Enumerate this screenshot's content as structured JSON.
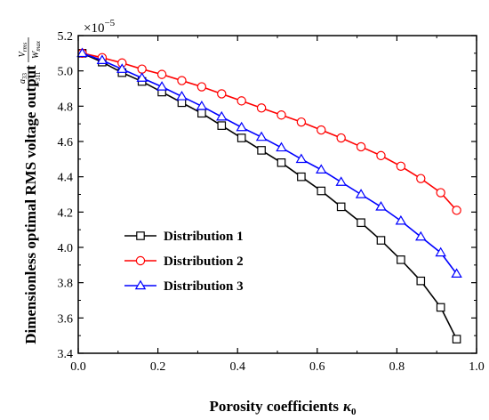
{
  "chart_data": {
    "type": "line",
    "xlabel": "Porosity coefficients",
    "xlabel_symbol": "κ",
    "xlabel_subscript": "0",
    "ylabel": "Dimensionless optimal RMS voltage output",
    "ylabel_factor": {
      "a": "a",
      "a_sub": "33",
      "e": "e",
      "e_sub": "311",
      "v": "V",
      "v_sub": "rms",
      "w": "W",
      "w_sub": "max"
    },
    "y_multiplier": "×10",
    "y_multiplier_exp": "−5",
    "xlim": [
      0.0,
      1.0
    ],
    "ylim": [
      3.4,
      5.2
    ],
    "xticks": [
      "0.0",
      "0.2",
      "0.4",
      "0.6",
      "0.8",
      "1.0"
    ],
    "yticks": [
      "3.4",
      "3.6",
      "3.8",
      "4.0",
      "4.2",
      "4.4",
      "4.6",
      "4.8",
      "5.0",
      "5.2"
    ],
    "legend_position": "lower-left",
    "x": [
      0.01,
      0.06,
      0.11,
      0.16,
      0.21,
      0.26,
      0.31,
      0.36,
      0.41,
      0.46,
      0.51,
      0.56,
      0.61,
      0.66,
      0.71,
      0.76,
      0.81,
      0.86,
      0.91,
      0.95
    ],
    "series": [
      {
        "name": "Distribution 1",
        "color": "#000000",
        "marker": "square",
        "values": [
          5.1,
          5.05,
          4.99,
          4.94,
          4.88,
          4.82,
          4.76,
          4.69,
          4.62,
          4.55,
          4.48,
          4.4,
          4.32,
          4.23,
          4.14,
          4.04,
          3.93,
          3.81,
          3.66,
          3.48
        ]
      },
      {
        "name": "Distribution 2",
        "color": "#ff0000",
        "marker": "circle",
        "values": [
          5.1,
          5.075,
          5.045,
          5.01,
          4.98,
          4.945,
          4.91,
          4.87,
          4.83,
          4.79,
          4.75,
          4.71,
          4.665,
          4.62,
          4.57,
          4.52,
          4.46,
          4.39,
          4.31,
          4.21
        ]
      },
      {
        "name": "Distribution 3",
        "color": "#0000ff",
        "marker": "triangle",
        "values": [
          5.1,
          5.06,
          5.01,
          4.96,
          4.91,
          4.855,
          4.8,
          4.74,
          4.68,
          4.625,
          4.565,
          4.5,
          4.44,
          4.37,
          4.3,
          4.23,
          4.15,
          4.06,
          3.97,
          3.85
        ]
      }
    ]
  }
}
